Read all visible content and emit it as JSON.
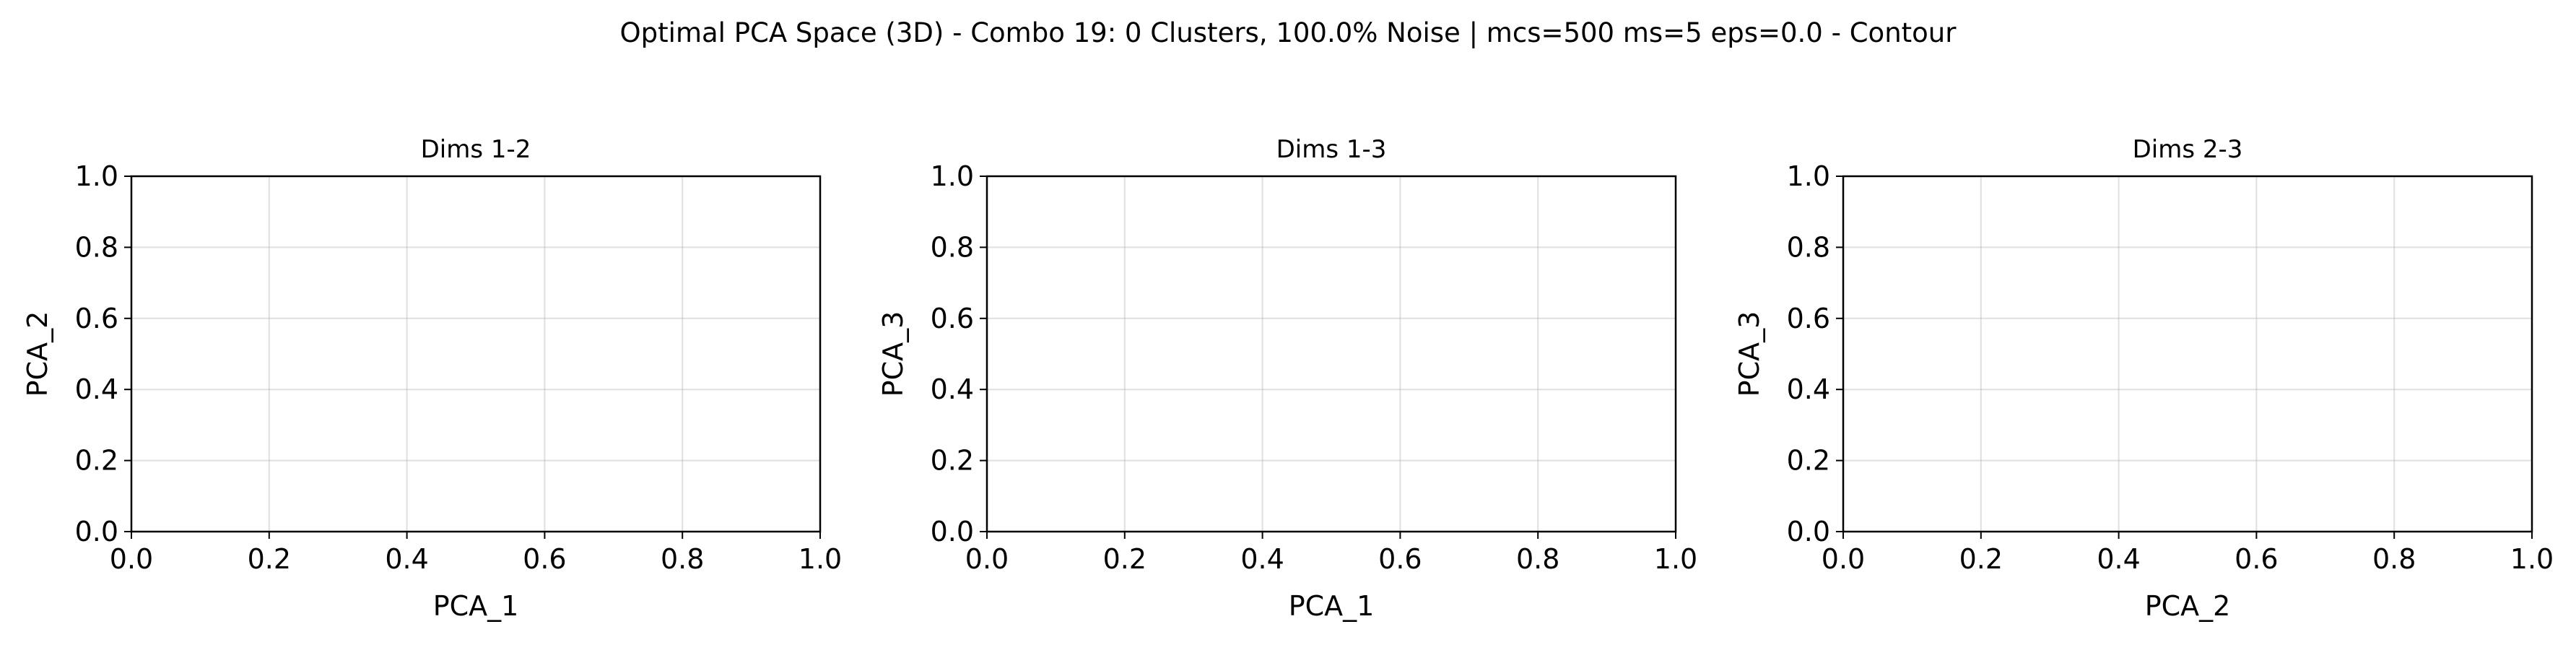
{
  "suptitle": "Optimal PCA Space (3D) - Combo 19: 0 Clusters, 100.0% Noise | mcs=500 ms=5 eps=0.0 - Contour",
  "chart_data": [
    {
      "type": "scatter",
      "title": "Dims 1-2",
      "xlabel": "PCA_1",
      "ylabel": "PCA_2",
      "xlim": [
        0.0,
        1.0
      ],
      "ylim": [
        0.0,
        1.0
      ],
      "xticks": [
        "0.0",
        "0.2",
        "0.4",
        "0.6",
        "0.8",
        "1.0"
      ],
      "yticks": [
        "0.0",
        "0.2",
        "0.4",
        "0.6",
        "0.8",
        "1.0"
      ],
      "grid": true,
      "series": []
    },
    {
      "type": "scatter",
      "title": "Dims 1-3",
      "xlabel": "PCA_1",
      "ylabel": "PCA_3",
      "xlim": [
        0.0,
        1.0
      ],
      "ylim": [
        0.0,
        1.0
      ],
      "xticks": [
        "0.0",
        "0.2",
        "0.4",
        "0.6",
        "0.8",
        "1.0"
      ],
      "yticks": [
        "0.0",
        "0.2",
        "0.4",
        "0.6",
        "0.8",
        "1.0"
      ],
      "grid": true,
      "series": []
    },
    {
      "type": "scatter",
      "title": "Dims 2-3",
      "xlabel": "PCA_2",
      "ylabel": "PCA_3",
      "xlim": [
        0.0,
        1.0
      ],
      "ylim": [
        0.0,
        1.0
      ],
      "xticks": [
        "0.0",
        "0.2",
        "0.4",
        "0.6",
        "0.8",
        "1.0"
      ],
      "yticks": [
        "0.0",
        "0.2",
        "0.4",
        "0.6",
        "0.8",
        "1.0"
      ],
      "grid": true,
      "series": []
    }
  ]
}
